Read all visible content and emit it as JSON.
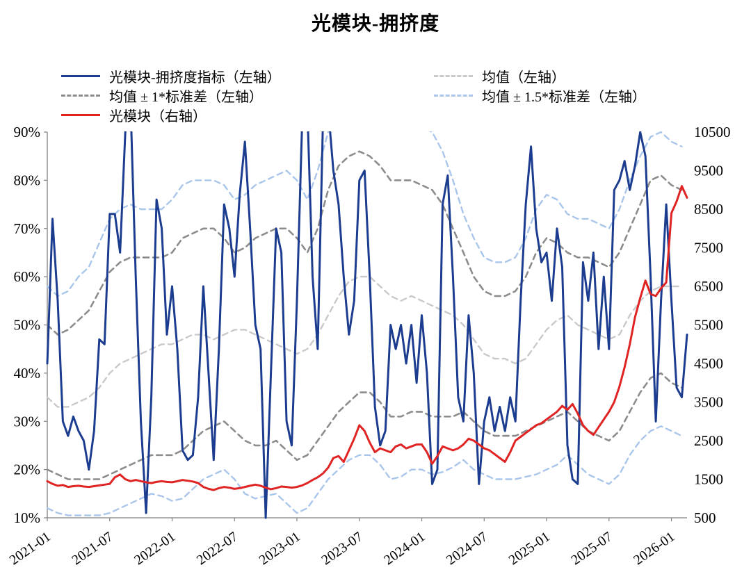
{
  "title": "光模块-拥挤度",
  "legend": {
    "items": [
      {
        "label": "光模块-拥挤度指标（左轴）",
        "color": "#1c3d8f",
        "style": "solid"
      },
      {
        "label": "均值（左轴）",
        "color": "#c9c9c9",
        "style": "dashed"
      },
      {
        "label": "均值 ± 1*标准差（左轴）",
        "color": "#8c8c8c",
        "style": "dashed"
      },
      {
        "label": "均值 ± 1.5*标准差（左轴）",
        "color": "#a9c6ea",
        "style": "dashed"
      },
      {
        "label": "光模块（右轴）",
        "color": "#e02424",
        "style": "solid"
      }
    ]
  },
  "chart_data": {
    "type": "line",
    "title": "光模块-拥挤度",
    "x_axis": {
      "min": 0,
      "max": 61.5,
      "ticks": [
        {
          "m": 0,
          "label": "2021-01"
        },
        {
          "m": 6,
          "label": "2021-07"
        },
        {
          "m": 12,
          "label": "2022-01"
        },
        {
          "m": 18,
          "label": "2022-07"
        },
        {
          "m": 24,
          "label": "2023-01"
        },
        {
          "m": 30,
          "label": "2023-07"
        },
        {
          "m": 36,
          "label": "2024-01"
        },
        {
          "m": 42,
          "label": "2024-07"
        },
        {
          "m": 48,
          "label": "2025-01"
        },
        {
          "m": 54,
          "label": "2025-07"
        },
        {
          "m": 60,
          "label": "2026-01"
        }
      ]
    },
    "left_axis": {
      "min": 10,
      "max": 90,
      "ticks": [
        {
          "v": 10,
          "label": "10%"
        },
        {
          "v": 20,
          "label": "20%"
        },
        {
          "v": 30,
          "label": "30%"
        },
        {
          "v": 40,
          "label": "40%"
        },
        {
          "v": 50,
          "label": "50%"
        },
        {
          "v": 60,
          "label": "60%"
        },
        {
          "v": 70,
          "label": "70%"
        },
        {
          "v": 80,
          "label": "80%"
        },
        {
          "v": 90,
          "label": "90%"
        }
      ]
    },
    "right_axis": {
      "min": 500,
      "max": 10500,
      "ticks": [
        {
          "v": 500,
          "label": "500"
        },
        {
          "v": 1500,
          "label": "1500"
        },
        {
          "v": 2500,
          "label": "2500"
        },
        {
          "v": 3500,
          "label": "3500"
        },
        {
          "v": 4500,
          "label": "4500"
        },
        {
          "v": 5500,
          "label": "5500"
        },
        {
          "v": 6500,
          "label": "6500"
        },
        {
          "v": 7500,
          "label": "7500"
        },
        {
          "v": 8500,
          "label": "8500"
        },
        {
          "v": 9500,
          "label": "9500"
        },
        {
          "v": 10500,
          "label": "10500"
        }
      ]
    },
    "series": [
      {
        "id": "upper15",
        "name": "均值 + 1.5*标准差（左轴）",
        "axis": "left",
        "color": "#a9c6ea",
        "dash": "8 6",
        "width": 2.4,
        "x_start": 0,
        "x_step": 1,
        "values": [
          58,
          56,
          57,
          60,
          62,
          67,
          72,
          74,
          75,
          74,
          74,
          74,
          76,
          79,
          80,
          80,
          80,
          79,
          76,
          77,
          79,
          80,
          81,
          82,
          80,
          76,
          82,
          90,
          95,
          97,
          98,
          97,
          95,
          92,
          92,
          93,
          91,
          90,
          86,
          80,
          73,
          68,
          64,
          63,
          63,
          64,
          68,
          74,
          77,
          76,
          73,
          72,
          72,
          71,
          70,
          74,
          80,
          85,
          89,
          90,
          88,
          87
        ]
      },
      {
        "id": "lower15",
        "name": "均值 - 1.5*标准差（左轴）",
        "axis": "left",
        "color": "#a9c6ea",
        "dash": "8 6",
        "width": 2.4,
        "x_start": 0,
        "x_step": 1,
        "values": [
          12,
          11,
          10.5,
          10.5,
          10.5,
          10.5,
          11,
          12,
          13,
          14,
          15,
          14.5,
          13.5,
          14,
          16,
          18,
          19,
          20,
          18,
          15,
          14,
          14.5,
          15,
          13,
          11,
          12,
          15,
          18,
          20,
          22,
          23,
          23,
          21,
          18,
          18.5,
          20,
          20,
          19,
          19.5,
          20.5,
          22,
          20,
          19,
          18,
          18,
          18,
          18.5,
          19,
          20,
          21,
          23,
          21,
          19,
          18,
          17,
          19,
          23,
          26,
          28,
          29,
          28,
          27
        ]
      },
      {
        "id": "mean",
        "name": "均值（左轴）",
        "axis": "left",
        "color": "#c9c9c9",
        "dash": "8 6",
        "width": 2.4,
        "x_start": 0,
        "x_step": 1,
        "values": [
          35,
          33,
          33,
          34,
          35,
          37,
          40,
          42,
          43,
          44,
          45,
          46,
          46,
          47,
          48,
          48,
          47,
          48,
          49,
          49,
          48,
          47,
          46,
          45,
          44,
          45,
          48,
          52,
          56,
          59,
          60,
          60,
          58,
          56,
          55,
          56,
          55,
          54,
          53,
          52,
          50,
          47,
          44,
          43,
          43,
          42,
          43,
          46,
          49,
          51,
          52,
          50,
          49,
          48,
          47,
          48,
          52,
          55,
          57,
          58,
          58,
          58
        ]
      },
      {
        "id": "upper1",
        "name": "均值 + 1*标准差（左轴）",
        "axis": "left",
        "color": "#8c8c8c",
        "dash": "8 6",
        "width": 2.6,
        "x_start": 0,
        "x_step": 1,
        "values": [
          50,
          48,
          49,
          51,
          53,
          57,
          61,
          63,
          64,
          64,
          64,
          64,
          65,
          68,
          69,
          70,
          70,
          68,
          65,
          66,
          68,
          69,
          70,
          70,
          68,
          65,
          70,
          78,
          83,
          85,
          86,
          85,
          83,
          80,
          80,
          80,
          79,
          78,
          75,
          70,
          65,
          60,
          57,
          56,
          56,
          57,
          60,
          65,
          68,
          67,
          65,
          64,
          64,
          63,
          62,
          65,
          70,
          75,
          80,
          81,
          79,
          78
        ]
      },
      {
        "id": "lower1",
        "name": "均值 - 1*标准差（左轴）",
        "axis": "left",
        "color": "#8c8c8c",
        "dash": "8 6",
        "width": 2.6,
        "x_start": 0,
        "x_step": 1,
        "values": [
          20,
          19,
          18,
          18,
          18,
          18,
          19,
          20,
          21,
          22,
          23,
          23,
          23,
          24,
          26,
          28,
          29,
          30,
          28,
          26,
          25,
          25,
          26,
          24,
          22,
          23,
          26,
          29,
          32,
          34,
          36,
          36,
          34,
          31,
          31,
          32,
          32,
          31,
          31,
          31,
          32,
          30,
          28,
          27,
          27,
          27,
          28,
          29,
          30,
          31,
          32,
          30,
          28,
          27,
          26,
          28,
          32,
          36,
          39,
          40,
          38,
          37
        ]
      },
      {
        "id": "crowding",
        "name": "光模块-拥挤度指标（左轴）",
        "axis": "left",
        "color": "#1c3d8f",
        "dash": null,
        "width": 3,
        "x_start": 0,
        "x_step": 0.5,
        "values": [
          42,
          72,
          55,
          30,
          27,
          31,
          28,
          26,
          20,
          28,
          47,
          46,
          73,
          73,
          65,
          90,
          96,
          60,
          30,
          11,
          35,
          76,
          70,
          48,
          58,
          45,
          24,
          22,
          23,
          35,
          58,
          40,
          22,
          45,
          75,
          70,
          60,
          77,
          88,
          70,
          50,
          45,
          10,
          40,
          70,
          65,
          30,
          25,
          55,
          92,
          95,
          60,
          45,
          92,
          95,
          82,
          75,
          60,
          48,
          55,
          80,
          82,
          60,
          33,
          25,
          28,
          50,
          45,
          50,
          42,
          50,
          38,
          52,
          40,
          17,
          20,
          75,
          81,
          60,
          35,
          30,
          52,
          40,
          17,
          30,
          35,
          28,
          33,
          28,
          35,
          30,
          55,
          75,
          87,
          70,
          63,
          65,
          55,
          70,
          62,
          25,
          18,
          17,
          63,
          55,
          65,
          45,
          60,
          45,
          78,
          80,
          84,
          78,
          83,
          90,
          85,
          60,
          30,
          55,
          75,
          55,
          37,
          35,
          48
        ]
      },
      {
        "id": "price",
        "name": "光模块（右轴）",
        "axis": "right",
        "color": "#e02424",
        "dash": null,
        "width": 3,
        "x_start": 0,
        "x_step": 0.5,
        "values": [
          1450,
          1380,
          1330,
          1350,
          1300,
          1320,
          1330,
          1310,
          1300,
          1320,
          1340,
          1360,
          1380,
          1550,
          1620,
          1500,
          1450,
          1480,
          1450,
          1420,
          1400,
          1430,
          1450,
          1430,
          1420,
          1450,
          1480,
          1460,
          1440,
          1400,
          1300,
          1250,
          1220,
          1270,
          1300,
          1280,
          1250,
          1270,
          1300,
          1330,
          1360,
          1330,
          1280,
          1240,
          1270,
          1310,
          1300,
          1280,
          1300,
          1340,
          1400,
          1480,
          1550,
          1650,
          1800,
          2050,
          2100,
          1950,
          2250,
          2550,
          2900,
          2750,
          2450,
          2200,
          2300,
          2250,
          2200,
          2350,
          2400,
          2300,
          2350,
          2400,
          2400,
          2200,
          1900,
          2100,
          2350,
          2300,
          2250,
          2300,
          2400,
          2550,
          2500,
          2400,
          2300,
          2250,
          2150,
          2050,
          1950,
          2200,
          2500,
          2600,
          2700,
          2800,
          2900,
          2950,
          3050,
          3150,
          3250,
          3400,
          3300,
          3450,
          3200,
          2900,
          2750,
          2650,
          2850,
          3050,
          3250,
          3500,
          3900,
          4400,
          5000,
          5700,
          6200,
          6650,
          6300,
          6250,
          6450,
          6600,
          8400,
          8700,
          9100,
          8800
        ]
      }
    ]
  }
}
